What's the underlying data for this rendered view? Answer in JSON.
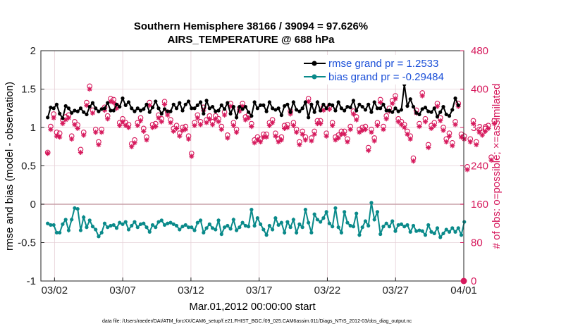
{
  "chart_data": {
    "type": "line",
    "title": "Southern Hemisphere 38166 / 39094 = 97.626%",
    "subtitle": "AIRS_TEMPERATURE @ 688 hPa",
    "xlabel": "Mar.01,2012 00:00:00 start",
    "ylabel_left": "rmse and bias (model - observation)",
    "ylabel_right": "# of obs: o=possible; ×=assimilated",
    "footer": "data file: /Users/raeder/DAI/ATM_forcXX/CAM6_setup/f.e21.FHIST_BGC.f09_025.CAM6assim.011/Diags_NTrS_2012-03/obs_diag_output.nc",
    "ylim_left": [
      -1,
      2
    ],
    "ylim_right": [
      0,
      480
    ],
    "yticks_left": [
      "-1",
      "-0.5",
      "0",
      "0.5",
      "1",
      "1.5",
      "2"
    ],
    "yticks_right": [
      "0",
      "80",
      "160",
      "240",
      "320",
      "400",
      "480"
    ],
    "x_tick_labels": [
      "03/02",
      "03/07",
      "03/12",
      "03/17",
      "03/22",
      "03/27",
      "04/01"
    ],
    "x_tick_days": [
      1,
      6,
      11,
      16,
      21,
      26,
      31
    ],
    "x_range_days": [
      0,
      31
    ],
    "colors": {
      "rmse": "#000000",
      "bias": "#0a8a8a",
      "obs": "#d6195c",
      "legend_text": "#1a4fd8",
      "grid": "#e5cfd6",
      "zero": "#c8a0a8"
    },
    "series": [
      {
        "name": "rmse grand pr = 1.2533",
        "axis": "left",
        "values": [
          1.13,
          1.26,
          1.25,
          1.3,
          1.18,
          1.12,
          1.28,
          1.25,
          1.19,
          1.22,
          1.21,
          1.25,
          1.2,
          1.17,
          1.27,
          1.32,
          1.25,
          1.21,
          1.24,
          1.25,
          1.32,
          1.22,
          1.22,
          1.3,
          1.27,
          1.38,
          1.29,
          1.33,
          1.25,
          1.21,
          1.25,
          1.22,
          1.24,
          1.3,
          1.2,
          1.26,
          1.34,
          1.25,
          1.18,
          1.24,
          1.21,
          1.21,
          1.3,
          1.25,
          1.32,
          1.22,
          1.3,
          1.34,
          1.25,
          1.25,
          1.29,
          1.33,
          1.18,
          1.35,
          1.25,
          1.27,
          1.21,
          1.22,
          1.29,
          1.24,
          1.32,
          1.18,
          1.27,
          1.13,
          1.27,
          1.24,
          1.27,
          1.2,
          1.15,
          1.33,
          1.25,
          1.29,
          1.29,
          1.21,
          1.33,
          1.25,
          1.23,
          1.25,
          1.16,
          1.28,
          1.3,
          1.2,
          1.33,
          1.23,
          1.21,
          1.25,
          1.33,
          1.13,
          1.3,
          1.2,
          1.33,
          1.22,
          1.3,
          1.25,
          1.3,
          1.29,
          1.22,
          1.33,
          1.25,
          1.22,
          1.27,
          1.26,
          1.35,
          1.22,
          1.3,
          1.27,
          1.23,
          1.3,
          1.2,
          1.33,
          1.25,
          1.25,
          1.3,
          1.22,
          1.22,
          1.2,
          1.25,
          1.21,
          1.23,
          1.56,
          1.28,
          1.37,
          1.27,
          1.19,
          1.17,
          1.24,
          1.26,
          1.21,
          1.2,
          1.25,
          1.14,
          1.2,
          1.27,
          1.17,
          1.15,
          1.23,
          1.38,
          1.29
        ]
      },
      {
        "name": "bias grand pr = -0.29484",
        "axis": "left",
        "values": [
          -0.25,
          -0.27,
          -0.27,
          -0.37,
          -0.37,
          -0.26,
          -0.2,
          -0.34,
          -0.2,
          -0.05,
          -0.06,
          -0.34,
          -0.17,
          -0.3,
          -0.21,
          -0.29,
          -0.33,
          -0.42,
          -0.37,
          -0.25,
          -0.3,
          -0.28,
          -0.27,
          -0.31,
          -0.24,
          -0.26,
          -0.23,
          -0.33,
          -0.28,
          -0.23,
          -0.3,
          -0.26,
          -0.25,
          -0.3,
          -0.36,
          -0.27,
          -0.3,
          -0.23,
          -0.21,
          -0.27,
          -0.25,
          -0.24,
          -0.26,
          -0.28,
          -0.33,
          -0.29,
          -0.27,
          -0.3,
          -0.3,
          -0.34,
          -0.24,
          -0.21,
          -0.37,
          -0.31,
          -0.26,
          -0.31,
          -0.33,
          -0.21,
          -0.39,
          -0.3,
          -0.28,
          -0.32,
          -0.2,
          -0.34,
          -0.3,
          -0.24,
          -0.28,
          -0.29,
          -0.07,
          -0.28,
          -0.18,
          -0.26,
          -0.33,
          -0.4,
          -0.28,
          -0.33,
          -0.18,
          -0.27,
          -0.24,
          -0.37,
          -0.23,
          -0.3,
          -0.2,
          -0.37,
          -0.26,
          -0.3,
          -0.07,
          -0.24,
          -0.37,
          -0.13,
          -0.2,
          -0.23,
          -0.18,
          -0.1,
          -0.25,
          -0.29,
          -0.05,
          -0.3,
          -0.37,
          -0.1,
          -0.24,
          -0.28,
          -0.29,
          -0.12,
          -0.4,
          -0.3,
          -0.22,
          -0.28,
          0.02,
          -0.2,
          -0.1,
          -0.39,
          -0.29,
          -0.25,
          -0.29,
          -0.22,
          -0.35,
          -0.27,
          -0.26,
          -0.29,
          -0.27,
          -0.36,
          -0.28,
          -0.35,
          -0.34,
          -0.35,
          -0.4,
          -0.27,
          -0.36,
          -0.38,
          -0.31,
          -0.43,
          -0.38,
          -0.33,
          -0.36,
          -0.31,
          -0.36,
          -0.31,
          -0.4,
          -0.23
        ]
      },
      {
        "name": "obs possible",
        "axis": "right",
        "values": [
          268,
          322,
          348,
          310,
          308,
          336,
          342,
          346,
          302,
          332,
          325,
          274,
          310,
          372,
          406,
          356,
          316,
          290,
          316,
          362,
          344,
          380,
          378,
          366,
          330,
          338,
          330,
          326,
          286,
          294,
          330,
          340,
          318,
          300,
          372,
          326,
          328,
          346,
          338,
          374,
          352,
          336,
          318,
          324,
          308,
          320,
          322,
          302,
          266,
          330,
          346,
          332,
          362,
          336,
          344,
          332,
          344,
          338,
          322,
          352,
          304,
          370,
          330,
          316,
          360,
          370,
          342,
          346,
          328,
          294,
          300,
          296,
          306,
          306,
          330,
          336,
          308,
          296,
          300,
          324,
          326,
          354,
          330,
          316,
          290,
          312,
          300,
          380,
          298,
          312,
          334,
          334,
          362,
          308,
          364,
          330,
          300,
          304,
          312,
          312,
          296,
          322,
          354,
          342,
          316,
          320,
          322,
          278,
          316,
          298,
          330,
          378,
          322,
          344,
          360,
          376,
          386,
          338,
          332,
          326,
          312,
          302,
          256,
          356,
          328,
          392,
          338,
          284,
          324,
          330,
          370,
          340,
          320,
          296,
          308,
          288,
          332,
          370,
          306,
          302,
          238,
          296,
          334,
          290,
          316,
          310,
          318,
          324,
          258,
          334
        ]
      },
      {
        "name": "obs assimilated",
        "axis": "right",
        "values": [
          266,
          316,
          340,
          302,
          300,
          328,
          336,
          340,
          296,
          326,
          318,
          268,
          304,
          366,
          400,
          350,
          310,
          284,
          310,
          356,
          338,
          374,
          372,
          360,
          324,
          332,
          324,
          320,
          280,
          288,
          324,
          334,
          312,
          294,
          366,
          320,
          322,
          340,
          332,
          368,
          346,
          330,
          312,
          318,
          302,
          314,
          316,
          296,
          260,
          324,
          340,
          326,
          356,
          330,
          338,
          326,
          338,
          332,
          316,
          346,
          298,
          364,
          324,
          310,
          354,
          364,
          336,
          340,
          322,
          288,
          294,
          290,
          300,
          300,
          324,
          330,
          302,
          290,
          294,
          318,
          320,
          348,
          324,
          310,
          284,
          306,
          294,
          374,
          292,
          306,
          328,
          328,
          356,
          302,
          358,
          324,
          294,
          298,
          306,
          306,
          290,
          316,
          348,
          336,
          310,
          314,
          316,
          272,
          310,
          292,
          324,
          372,
          316,
          338,
          354,
          370,
          380,
          332,
          326,
          320,
          306,
          296,
          250,
          350,
          322,
          386,
          332,
          278,
          318,
          324,
          364,
          334,
          314,
          290,
          302,
          282,
          326,
          364,
          300,
          296,
          232,
          290,
          328,
          284,
          310,
          304,
          312,
          318,
          252,
          328
        ]
      }
    ],
    "legend": [
      {
        "label": "rmse grand pr = 1.2533",
        "series": "rmse"
      },
      {
        "label": "bias grand pr = -0.29484",
        "series": "bias"
      }
    ]
  }
}
